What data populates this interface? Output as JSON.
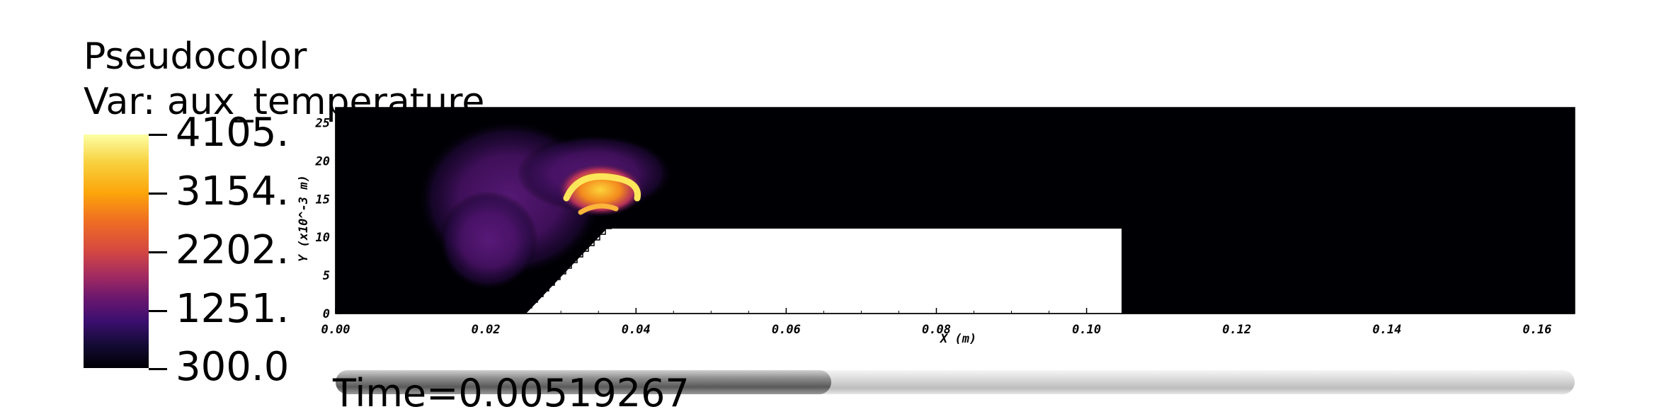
{
  "legend": {
    "plot_type": "Pseudocolor",
    "variable_line": "Var: aux_temperature",
    "colormap": "inferno",
    "labels": [
      "4105.",
      "3154.",
      "2202.",
      "1251.",
      "300.0"
    ]
  },
  "time_slider": {
    "label": "Time=0.00519267",
    "progress": 0.4
  },
  "chart_data": {
    "type": "heatmap",
    "title": "",
    "variable": "aux_temperature",
    "xlabel": "X (m)",
    "ylabel": "Y (x10^-3 m)",
    "xlim": [
      0.0,
      0.165
    ],
    "ylim": [
      0,
      27
    ],
    "x_ticks": [
      "0.00",
      "0.02",
      "0.04",
      "0.06",
      "0.08",
      "0.10",
      "0.12",
      "0.14",
      "0.16"
    ],
    "y_ticks": [
      "0",
      "5",
      "10",
      "15",
      "20",
      "25"
    ],
    "value_range": [
      300.0,
      4105.0
    ],
    "obstacle": {
      "x_start": 0.025,
      "x_ramp_end": 0.036,
      "x_end": 0.1055,
      "y_top": 11
    },
    "regions": [
      {
        "name": "cool plume",
        "x_center": 0.022,
        "y_center": 14,
        "value": 1250
      },
      {
        "name": "hot flame front",
        "x_center": 0.034,
        "y_center": 16,
        "value": 4105
      }
    ]
  }
}
